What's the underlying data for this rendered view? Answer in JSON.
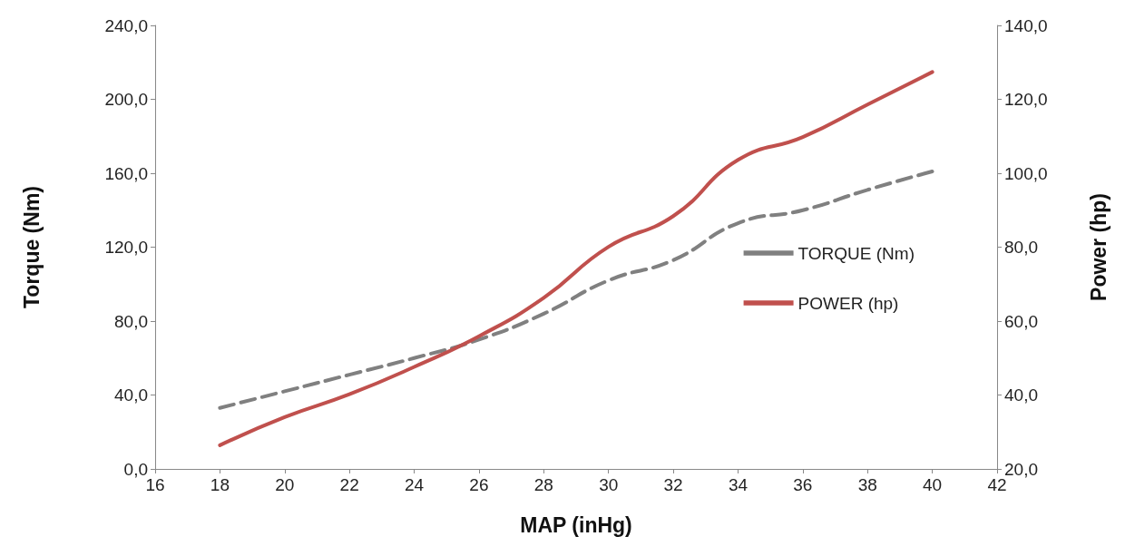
{
  "chart_data": {
    "type": "line",
    "xlabel": "MAP (inHg)",
    "ylabel": "Torque (Nm)",
    "y2label": "Power (hp)",
    "x": [
      18,
      20,
      22,
      24,
      26,
      28,
      30,
      32,
      34,
      36,
      38,
      40
    ],
    "series": [
      {
        "name": "TORQUE (Nm)",
        "color": "#808080",
        "line_style": "dashed",
        "values": [
          33,
          42,
          51,
          60,
          70,
          84,
          102,
          113,
          133,
          140,
          151,
          161
        ]
      },
      {
        "name": "POWER (hp)",
        "color": "#c0504d",
        "line_style": "solid",
        "axis": "y2",
        "values": [
          26.4,
          34,
          40.2,
          47.6,
          55.9,
          66.3,
          80.1,
          88.4,
          103.6,
          109.8,
          118.6,
          127.4
        ]
      }
    ],
    "xlim": [
      16,
      42
    ],
    "xticks": [
      16,
      18,
      20,
      22,
      24,
      26,
      28,
      30,
      32,
      34,
      36,
      38,
      40,
      42
    ],
    "ylim": [
      0,
      240
    ],
    "yticks": [
      {
        "value": 0,
        "label": "0,0"
      },
      {
        "value": 40,
        "label": "40,0"
      },
      {
        "value": 80,
        "label": "80,0"
      },
      {
        "value": 120,
        "label": "120,0"
      },
      {
        "value": 160,
        "label": "160,0"
      },
      {
        "value": 200,
        "label": "200,0"
      },
      {
        "value": 240,
        "label": "240,0"
      }
    ],
    "y2lim": [
      20,
      140
    ],
    "y2ticks": [
      {
        "value": 20,
        "label": "20,0"
      },
      {
        "value": 40,
        "label": "40,0"
      },
      {
        "value": 60,
        "label": "60,0"
      },
      {
        "value": 80,
        "label": "80,0"
      },
      {
        "value": 100,
        "label": "100,0"
      },
      {
        "value": 120,
        "label": "120,0"
      },
      {
        "value": 140,
        "label": "140,0"
      }
    ],
    "grid": false,
    "legend": "right",
    "marker": "none"
  }
}
